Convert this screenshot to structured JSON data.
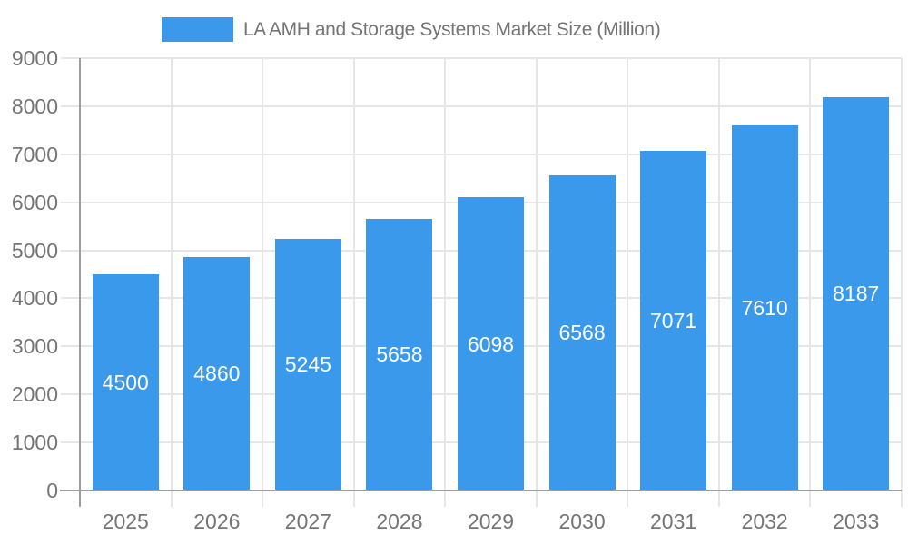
{
  "chart_data": {
    "type": "bar",
    "title": "LA AMH and Storage Systems Market Size (Million)",
    "categories": [
      "2025",
      "2026",
      "2027",
      "2028",
      "2029",
      "2030",
      "2031",
      "2032",
      "2033"
    ],
    "values": [
      4500,
      4860,
      5245,
      5658,
      6098,
      6568,
      7071,
      7610,
      8187
    ],
    "xlabel": "",
    "ylabel": "",
    "ylim": [
      0,
      9000
    ],
    "ytick_step": 1000,
    "grid": true,
    "legend_position": "top",
    "value_labels": "inside-center",
    "colors": {
      "bar": "#3b99ec",
      "axis_text": "#757575",
      "legend_text": "#757575",
      "grid_line": "#e6e6e6",
      "axis_line": "#9e9e9e",
      "bar_label": "#ffffff",
      "background": "#ffffff"
    }
  }
}
